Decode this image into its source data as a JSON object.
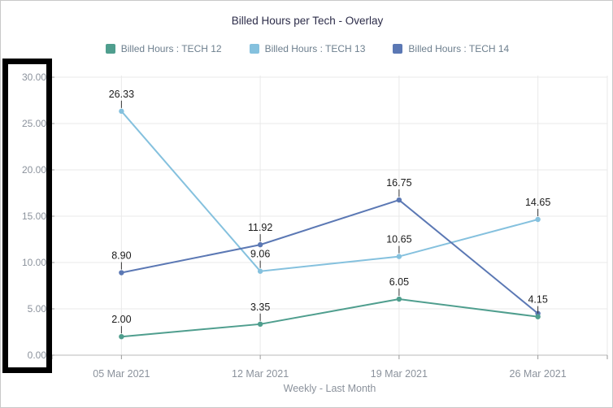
{
  "chart_data": {
    "type": "line",
    "title": "Billed Hours per Tech - Overlay",
    "xlabel": "Weekly - Last Month",
    "ylabel": "",
    "categories": [
      "05 Mar 2021",
      "12 Mar 2021",
      "19 Mar 2021",
      "26 Mar 2021"
    ],
    "series": [
      {
        "name": "Billed Hours : TECH 12",
        "color": "#4f9e8e",
        "values": [
          2.0,
          3.35,
          6.05,
          4.15
        ],
        "point_labels": [
          "2.00",
          "3.35",
          "6.05",
          "4.15"
        ]
      },
      {
        "name": "Billed Hours : TECH 13",
        "color": "#85c1de",
        "values": [
          26.33,
          9.06,
          10.65,
          14.65
        ],
        "point_labels": [
          "26.33",
          "9.06",
          "10.65",
          "14.65"
        ]
      },
      {
        "name": "Billed Hours : TECH 14",
        "color": "#5b78b4",
        "values": [
          8.9,
          11.92,
          16.75,
          4.5
        ],
        "point_labels": [
          "8.90",
          "11.92",
          "16.75",
          ""
        ]
      }
    ],
    "ylim": [
      0,
      30
    ],
    "ytick_step": 5,
    "ytick_labels": [
      "0.00",
      "5.00",
      "10.00",
      "15.00",
      "20.00",
      "25.00",
      "30.00"
    ],
    "grid": true,
    "legend_position": "top"
  },
  "colors": {
    "title_text": "#2c2c49",
    "legend_text": "#6d7f8e",
    "tick_label_text": "#8b929c",
    "data_label_text": "#1b1b1b",
    "gridline": "#e9e9e9",
    "axis_line": "#b8b8b8",
    "tick_mark": "#9a9a9a",
    "annotation_box": "#000000",
    "window_border": "#c9c9c9"
  }
}
